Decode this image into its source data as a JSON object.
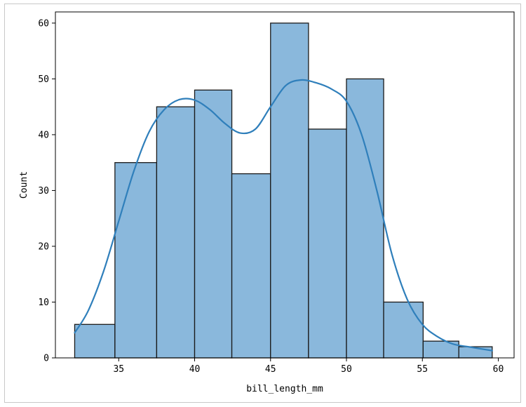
{
  "chart_data": {
    "type": "bar",
    "subtype": "histogram-with-kde",
    "title": "",
    "xlabel": "bill_length_mm",
    "ylabel": "Count",
    "xlim": [
      30.83,
      61.04
    ],
    "ylim": [
      0,
      62
    ],
    "x_ticks": [
      35,
      40,
      45,
      50,
      55,
      60
    ],
    "y_ticks": [
      0,
      10,
      20,
      30,
      40,
      50,
      60
    ],
    "grid": false,
    "legend": "none",
    "bin_edges": [
      32.1,
      34.75,
      37.5,
      40.0,
      42.45,
      45.0,
      47.5,
      50.0,
      52.45,
      55.05,
      57.4,
      59.6
    ],
    "values": [
      6,
      35,
      45,
      48,
      33,
      60,
      41,
      50,
      10,
      3,
      2
    ],
    "kde": {
      "x": [
        32.1,
        33.0,
        34.0,
        35.0,
        36.0,
        37.0,
        38.0,
        39.0,
        40.0,
        41.0,
        42.0,
        43.0,
        44.0,
        45.0,
        46.0,
        47.0,
        48.0,
        49.0,
        50.0,
        51.0,
        52.0,
        53.0,
        54.0,
        55.0,
        56.0,
        57.0,
        58.0,
        59.6
      ],
      "y": [
        4.5,
        8.5,
        15.5,
        24.5,
        33.5,
        40.5,
        44.5,
        46.3,
        46.2,
        44.5,
        42.0,
        40.3,
        41.0,
        45.0,
        48.8,
        49.8,
        49.3,
        48.2,
        46.0,
        40.0,
        30.0,
        18.5,
        10.5,
        6.0,
        3.8,
        2.5,
        2.0,
        1.3
      ]
    },
    "colors": {
      "bar_fill": "#8ab8dc",
      "bar_edge": "#1a1a1a",
      "kde_line": "#2f7fbb",
      "axis": "#000000"
    }
  }
}
